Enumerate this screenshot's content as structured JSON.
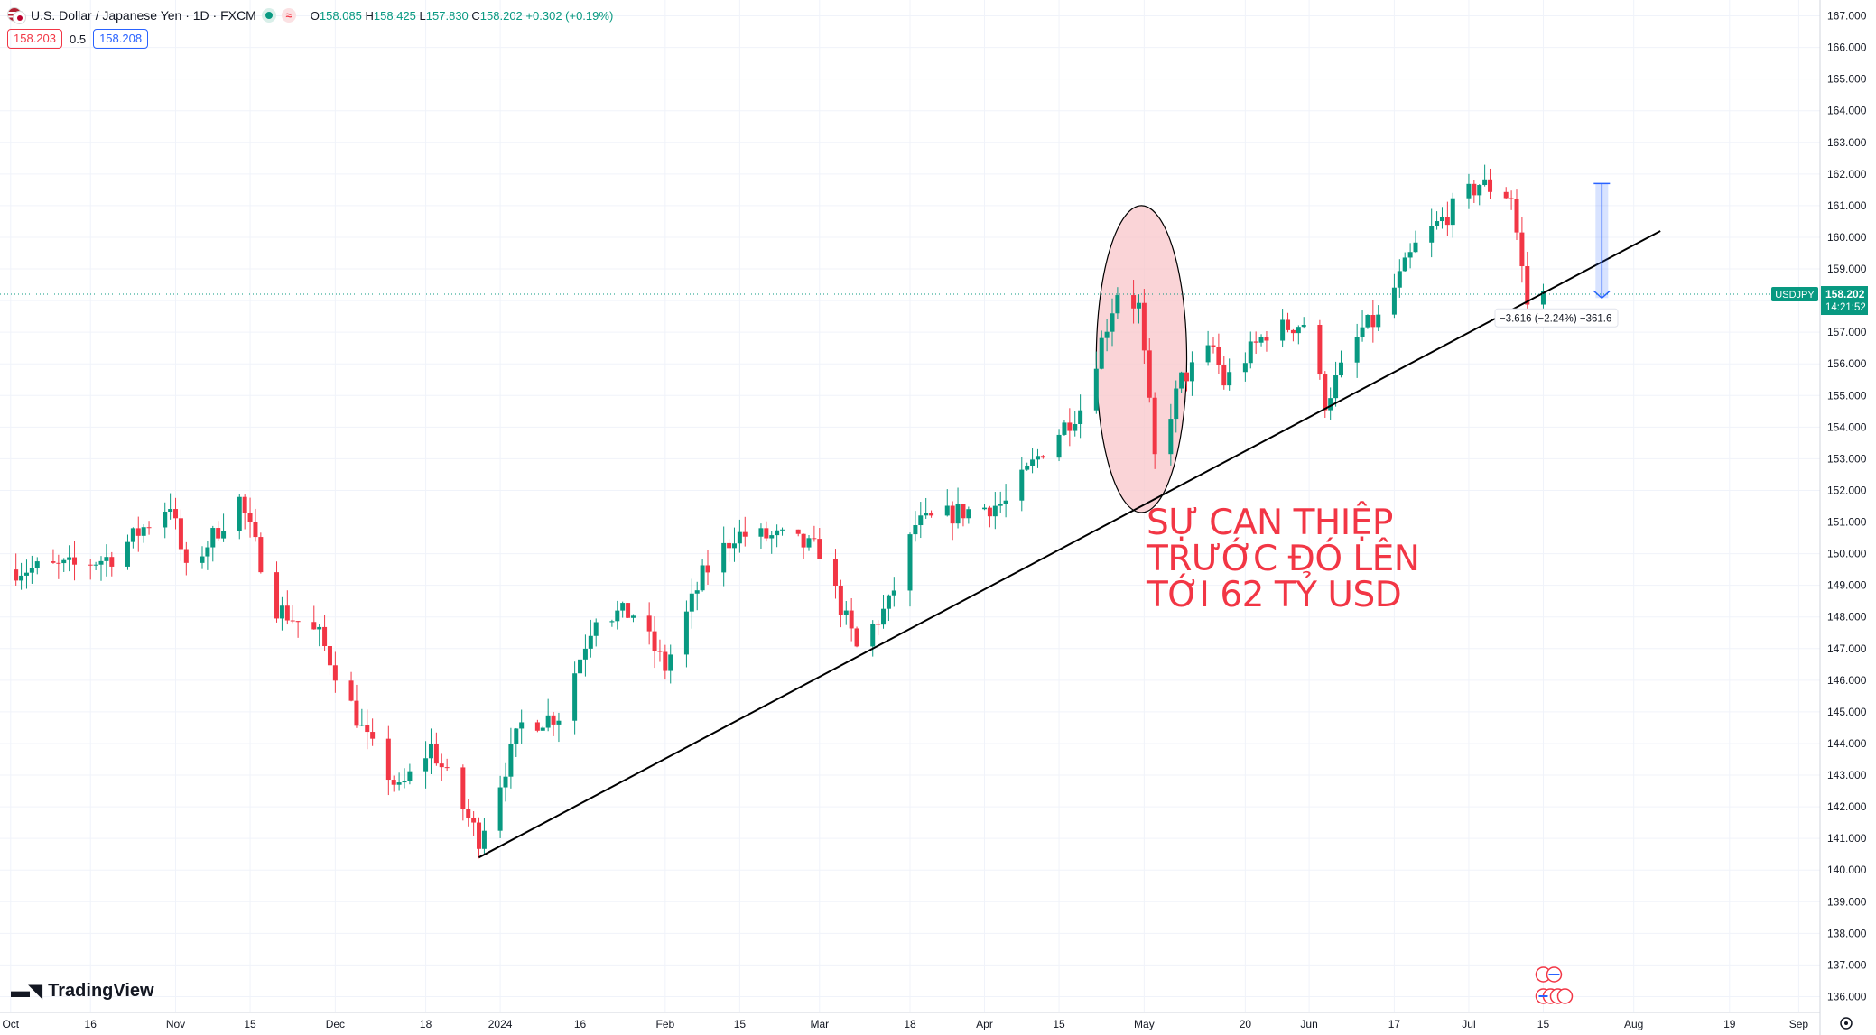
{
  "header": {
    "symbol_title": "U.S. Dollar / Japanese Yen · 1D · FXCM",
    "o_label": "O",
    "o_value": "158.085",
    "h_label": "H",
    "h_value": "158.425",
    "l_label": "L",
    "l_value": "157.830",
    "c_label": "C",
    "c_value": "158.202",
    "change": "+0.302 (+0.19%)"
  },
  "trade": {
    "sell_price": "158.203",
    "spread": "0.5",
    "buy_price": "158.208"
  },
  "brand": {
    "name": "TradingView"
  },
  "annotation": {
    "lines": [
      "SỰ CAN THIỆP",
      "TRƯỚC ĐÓ LÊN",
      "TỚI 62 TỶ USD"
    ]
  },
  "colors": {
    "up": "#089981",
    "down": "#f23645",
    "grid": "#f0f3fa",
    "annotation": "#f23645",
    "measure": "#2962ff",
    "trendline": "#000000",
    "ellipse_fill": "#f8c6ca"
  },
  "chart_data": {
    "type": "candlestick",
    "symbol": "USDJPY",
    "timeframe": "1D",
    "last_price": "158.202",
    "countdown": "14:21:52",
    "measure_label": "−3.616 (−2.24%) −361.6",
    "y_range": [
      135.5,
      167.5
    ],
    "y_ticks": [
      "167.000",
      "166.000",
      "165.000",
      "164.000",
      "163.000",
      "162.000",
      "161.000",
      "160.000",
      "159.000",
      "158.000",
      "157.000",
      "156.000",
      "155.000",
      "154.000",
      "153.000",
      "152.000",
      "151.000",
      "150.000",
      "149.000",
      "148.000",
      "147.000",
      "146.000",
      "145.000",
      "144.000",
      "143.000",
      "142.000",
      "141.000",
      "140.000",
      "139.000",
      "138.000",
      "137.000",
      "136.000"
    ],
    "x_range": [
      "2023-09-29",
      "2024-09-05"
    ],
    "x_ticks": [
      {
        "date": "2023-10-01",
        "label": "Oct"
      },
      {
        "date": "2023-10-16",
        "label": "16"
      },
      {
        "date": "2023-11-01",
        "label": "Nov"
      },
      {
        "date": "2023-11-15",
        "label": "15"
      },
      {
        "date": "2023-12-01",
        "label": "Dec"
      },
      {
        "date": "2023-12-18",
        "label": "18"
      },
      {
        "date": "2024-01-01",
        "label": "2024"
      },
      {
        "date": "2024-01-16",
        "label": "16"
      },
      {
        "date": "2024-02-01",
        "label": "Feb"
      },
      {
        "date": "2024-02-15",
        "label": "15"
      },
      {
        "date": "2024-03-01",
        "label": "Mar"
      },
      {
        "date": "2024-03-18",
        "label": "18"
      },
      {
        "date": "2024-04-01",
        "label": "Apr"
      },
      {
        "date": "2024-04-15",
        "label": "15"
      },
      {
        "date": "2024-05-01",
        "label": "May"
      },
      {
        "date": "2024-05-20",
        "label": "20"
      },
      {
        "date": "2024-06-01",
        "label": "Jun"
      },
      {
        "date": "2024-06-17",
        "label": "17"
      },
      {
        "date": "2024-07-01",
        "label": "Jul"
      },
      {
        "date": "2024-07-15",
        "label": "15"
      },
      {
        "date": "2024-08-01",
        "label": "Aug"
      },
      {
        "date": "2024-08-19",
        "label": "19"
      },
      {
        "date": "2024-09-01",
        "label": "Sep"
      }
    ],
    "close_path": [
      {
        "date": "2023-10-02",
        "close": 149.5
      },
      {
        "date": "2023-10-13",
        "close": 149.6
      },
      {
        "date": "2023-10-20",
        "close": 149.9
      },
      {
        "date": "2023-10-31",
        "close": 151.6
      },
      {
        "date": "2023-11-03",
        "close": 149.4
      },
      {
        "date": "2023-11-13",
        "close": 151.7
      },
      {
        "date": "2023-11-20",
        "close": 148.3
      },
      {
        "date": "2023-11-28",
        "close": 147.4
      },
      {
        "date": "2023-12-07",
        "close": 144.1
      },
      {
        "date": "2023-12-13",
        "close": 142.5
      },
      {
        "date": "2023-12-19",
        "close": 143.9
      },
      {
        "date": "2023-12-28",
        "close": 141.0
      },
      {
        "date": "2024-01-05",
        "close": 144.6
      },
      {
        "date": "2024-01-12",
        "close": 144.9
      },
      {
        "date": "2024-01-19",
        "close": 148.1
      },
      {
        "date": "2024-01-26",
        "close": 148.1
      },
      {
        "date": "2024-02-01",
        "close": 146.4
      },
      {
        "date": "2024-02-08",
        "close": 149.3
      },
      {
        "date": "2024-02-14",
        "close": 150.6
      },
      {
        "date": "2024-02-23",
        "close": 150.5
      },
      {
        "date": "2024-03-01",
        "close": 150.1
      },
      {
        "date": "2024-03-08",
        "close": 147.0
      },
      {
        "date": "2024-03-14",
        "close": 148.4
      },
      {
        "date": "2024-03-19",
        "close": 150.9
      },
      {
        "date": "2024-03-27",
        "close": 151.3
      },
      {
        "date": "2024-04-05",
        "close": 151.6
      },
      {
        "date": "2024-04-12",
        "close": 153.3
      },
      {
        "date": "2024-04-19",
        "close": 154.6
      },
      {
        "date": "2024-04-26",
        "close": 158.3
      },
      {
        "date": "2024-04-30",
        "close": 157.8
      },
      {
        "date": "2024-05-03",
        "close": 153.0
      },
      {
        "date": "2024-05-08",
        "close": 155.5
      },
      {
        "date": "2024-05-14",
        "close": 156.5
      },
      {
        "date": "2024-05-16",
        "close": 155.4
      },
      {
        "date": "2024-05-24",
        "close": 157.0
      },
      {
        "date": "2024-05-31",
        "close": 157.3
      },
      {
        "date": "2024-06-04",
        "close": 154.8
      },
      {
        "date": "2024-06-11",
        "close": 157.1
      },
      {
        "date": "2024-06-14",
        "close": 157.4
      },
      {
        "date": "2024-06-21",
        "close": 159.7
      },
      {
        "date": "2024-06-28",
        "close": 160.9
      },
      {
        "date": "2024-07-03",
        "close": 161.7
      },
      {
        "date": "2024-07-09",
        "close": 161.3
      },
      {
        "date": "2024-07-11",
        "close": 159.0
      },
      {
        "date": "2024-07-12",
        "close": 157.9
      },
      {
        "date": "2024-07-15",
        "close": 158.202
      }
    ],
    "trendline": [
      {
        "date": "2023-12-28",
        "price": 140.4
      },
      {
        "date": "2024-08-06",
        "price": 160.2
      }
    ],
    "measure": {
      "from_price": 161.7,
      "to_price": 158.08,
      "date": "2024-07-26"
    },
    "highlight_ellipse": {
      "center_date": "2024-04-30",
      "from_date": "2024-04-22",
      "to_date": "2024-05-09",
      "price_top": 161.0,
      "price_bottom": 151.3
    }
  }
}
